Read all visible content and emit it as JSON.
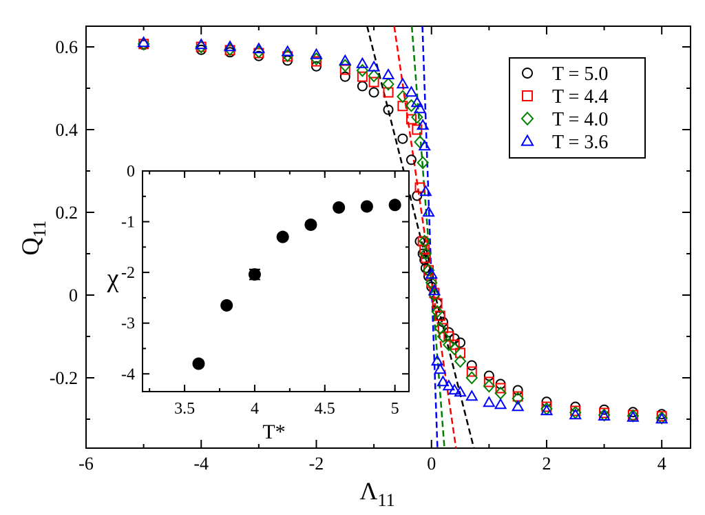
{
  "chart_data": [
    {
      "id": "main",
      "type": "scatter",
      "title": "",
      "xlabel": "Λ",
      "xlabel_sub": "11",
      "ylabel": "Q",
      "ylabel_sub": "11",
      "xlim": [
        -6,
        4.5
      ],
      "ylim": [
        -0.37,
        0.65
      ],
      "xticks": [
        -6,
        -4,
        -2,
        0,
        2,
        4
      ],
      "xtick_labels": [
        "-6",
        "-4",
        "-2",
        "0",
        "2",
        "4"
      ],
      "yticks": [
        -0.2,
        0,
        0.2,
        0.4,
        0.6
      ],
      "ytick_labels": [
        "-0.2",
        "0",
        "0.2",
        "0.4",
        "0.6"
      ],
      "grid": false,
      "legend_position": "top-right",
      "series": [
        {
          "name": "T = 5.0",
          "marker": "circle",
          "color": "#000000",
          "x": [
            -5,
            -4,
            -3.5,
            -3,
            -2.5,
            -2,
            -1.5,
            -1.2,
            -1,
            -0.75,
            -0.5,
            -0.35,
            -0.25,
            -0.2,
            -0.15,
            -0.12,
            -0.1,
            -0.05,
            0,
            0.05,
            0.1,
            0.15,
            0.2,
            0.3,
            0.4,
            0.5,
            0.7,
            1,
            1.2,
            1.5,
            2,
            2.5,
            3,
            3.5,
            4
          ],
          "y": [
            0.605,
            0.593,
            0.587,
            0.578,
            0.567,
            0.553,
            0.528,
            0.505,
            0.49,
            0.448,
            0.378,
            0.327,
            0.24,
            0.13,
            0.1,
            0.085,
            0.065,
            0.045,
            0.02,
            0.0,
            -0.02,
            -0.05,
            -0.065,
            -0.09,
            -0.105,
            -0.115,
            -0.17,
            -0.195,
            -0.215,
            -0.23,
            -0.258,
            -0.27,
            -0.277,
            -0.283,
            -0.288
          ]
        },
        {
          "name": "T = 4.4",
          "marker": "square",
          "color": "#ff0000",
          "x": [
            -5,
            -4,
            -3.5,
            -3,
            -2.5,
            -2,
            -1.5,
            -1.2,
            -1,
            -0.75,
            -0.5,
            -0.35,
            -0.25,
            -0.2,
            -0.15,
            -0.12,
            -0.1,
            -0.05,
            0,
            0.05,
            0.1,
            0.15,
            0.2,
            0.3,
            0.4,
            0.5,
            0.7,
            1,
            1.2,
            1.5,
            2,
            2.5,
            3,
            3.5,
            4
          ],
          "y": [
            0.607,
            0.6,
            0.592,
            0.585,
            0.577,
            0.565,
            0.545,
            0.528,
            0.515,
            0.49,
            0.457,
            0.425,
            0.4,
            0.26,
            0.13,
            0.11,
            0.09,
            0.06,
            0.03,
            0.005,
            -0.02,
            -0.05,
            -0.08,
            -0.1,
            -0.12,
            -0.14,
            -0.185,
            -0.21,
            -0.225,
            -0.245,
            -0.27,
            -0.28,
            -0.285,
            -0.29,
            -0.293
          ]
        },
        {
          "name": "T = 4.0",
          "marker": "diamond",
          "color": "#008000",
          "x": [
            -5,
            -4,
            -3.5,
            -3,
            -2.5,
            -2,
            -1.5,
            -1.2,
            -1,
            -0.75,
            -0.5,
            -0.35,
            -0.25,
            -0.2,
            -0.15,
            -0.12,
            -0.1,
            -0.05,
            0,
            0.05,
            0.1,
            0.15,
            0.2,
            0.3,
            0.4,
            0.5,
            0.7,
            1,
            1.2,
            1.5,
            2,
            2.5,
            3,
            3.5,
            4
          ],
          "y": [
            0.607,
            0.6,
            0.594,
            0.588,
            0.579,
            0.571,
            0.555,
            0.543,
            0.53,
            0.51,
            0.48,
            0.458,
            0.43,
            0.37,
            0.32,
            0.13,
            0.1,
            0.06,
            0.03,
            0.0,
            -0.04,
            -0.08,
            -0.1,
            -0.12,
            -0.13,
            -0.16,
            -0.2,
            -0.22,
            -0.237,
            -0.25,
            -0.275,
            -0.284,
            -0.29,
            -0.292,
            -0.297
          ]
        },
        {
          "name": "T = 3.6",
          "marker": "triangle",
          "color": "#0000ff",
          "x": [
            -5,
            -4,
            -3.5,
            -3,
            -2.5,
            -2,
            -1.5,
            -1.2,
            -1,
            -0.75,
            -0.5,
            -0.35,
            -0.25,
            -0.2,
            -0.15,
            -0.12,
            -0.1,
            -0.05,
            0,
            0.05,
            0.1,
            0.15,
            0.2,
            0.3,
            0.4,
            0.5,
            0.7,
            1,
            1.2,
            1.5,
            2,
            2.5,
            3,
            3.5,
            4
          ],
          "y": [
            0.61,
            0.605,
            0.6,
            0.595,
            0.588,
            0.581,
            0.566,
            0.559,
            0.551,
            0.532,
            0.51,
            0.49,
            0.465,
            0.45,
            0.41,
            0.36,
            0.25,
            0.2,
            0.05,
            0.01,
            -0.16,
            -0.18,
            -0.21,
            -0.22,
            -0.23,
            -0.235,
            -0.245,
            -0.26,
            -0.265,
            -0.27,
            -0.28,
            -0.29,
            -0.293,
            -0.296,
            -0.3
          ]
        }
      ],
      "fit_lines": [
        {
          "name": "T = 5.0 fit",
          "color": "#000000",
          "slope": -0.55
        },
        {
          "name": "T = 4.4 fit",
          "color": "#ff0000",
          "slope": -0.95
        },
        {
          "name": "T = 4.0 fit",
          "color": "#008000",
          "slope": -1.8
        },
        {
          "name": "T = 3.6 fit",
          "color": "#0000ff",
          "slope": -3.9
        }
      ]
    },
    {
      "id": "inset",
      "type": "scatter",
      "xlabel": "T*",
      "ylabel": "χ",
      "xlim": [
        3.2,
        5.1
      ],
      "ylim": [
        -4.35,
        0
      ],
      "xticks": [
        3.5,
        4,
        4.5,
        5
      ],
      "xtick_labels": [
        "3.5",
        "4",
        "4.5",
        "5"
      ],
      "yticks": [
        0,
        -1,
        -2,
        -3,
        -4
      ],
      "ytick_labels": [
        "0",
        "-1",
        "-2",
        "-3",
        "-4"
      ],
      "series": [
        {
          "name": "χ(T*)",
          "marker": "filled-circle",
          "color": "#000000",
          "x": [
            3.6,
            3.8,
            4.0,
            4.2,
            4.4,
            4.6,
            4.8,
            5.0
          ],
          "y": [
            -3.8,
            -2.65,
            -2.04,
            -1.3,
            -1.06,
            -0.72,
            -0.7,
            -0.67
          ],
          "errors": [
            0.04,
            0.04,
            0.1,
            0.04,
            0.05,
            0.03,
            0.03,
            0.03
          ]
        }
      ]
    }
  ]
}
